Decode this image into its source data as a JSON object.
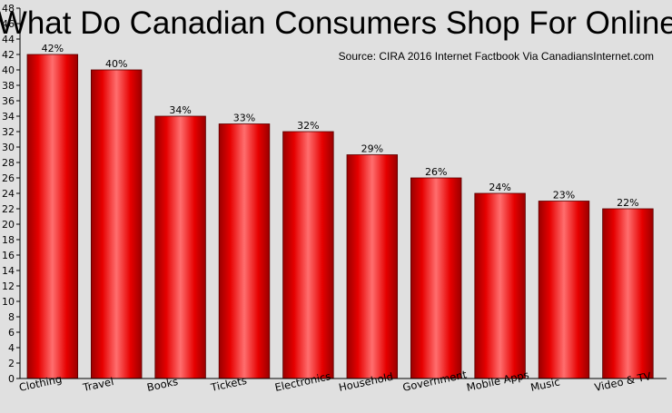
{
  "chart_data": {
    "type": "bar",
    "title": "What Do Canadian Consumers Shop For Online?",
    "subtitle": "Source: CIRA 2016 Internet Factbook Via CanadiansInternet.com",
    "categories": [
      "Clothing",
      "Travel",
      "Books",
      "Tickets",
      "Electronics",
      "Household",
      "Government",
      "Mobile Apps",
      "Music",
      "Video & TV"
    ],
    "values": [
      42,
      40,
      34,
      33,
      32,
      29,
      26,
      24,
      23,
      22
    ],
    "value_suffix": "%",
    "xlabel": "",
    "ylabel": "",
    "ylim": [
      0,
      48
    ],
    "ytick_step": 2,
    "grid": false,
    "legend": "none",
    "bar_color": "#e00000"
  }
}
